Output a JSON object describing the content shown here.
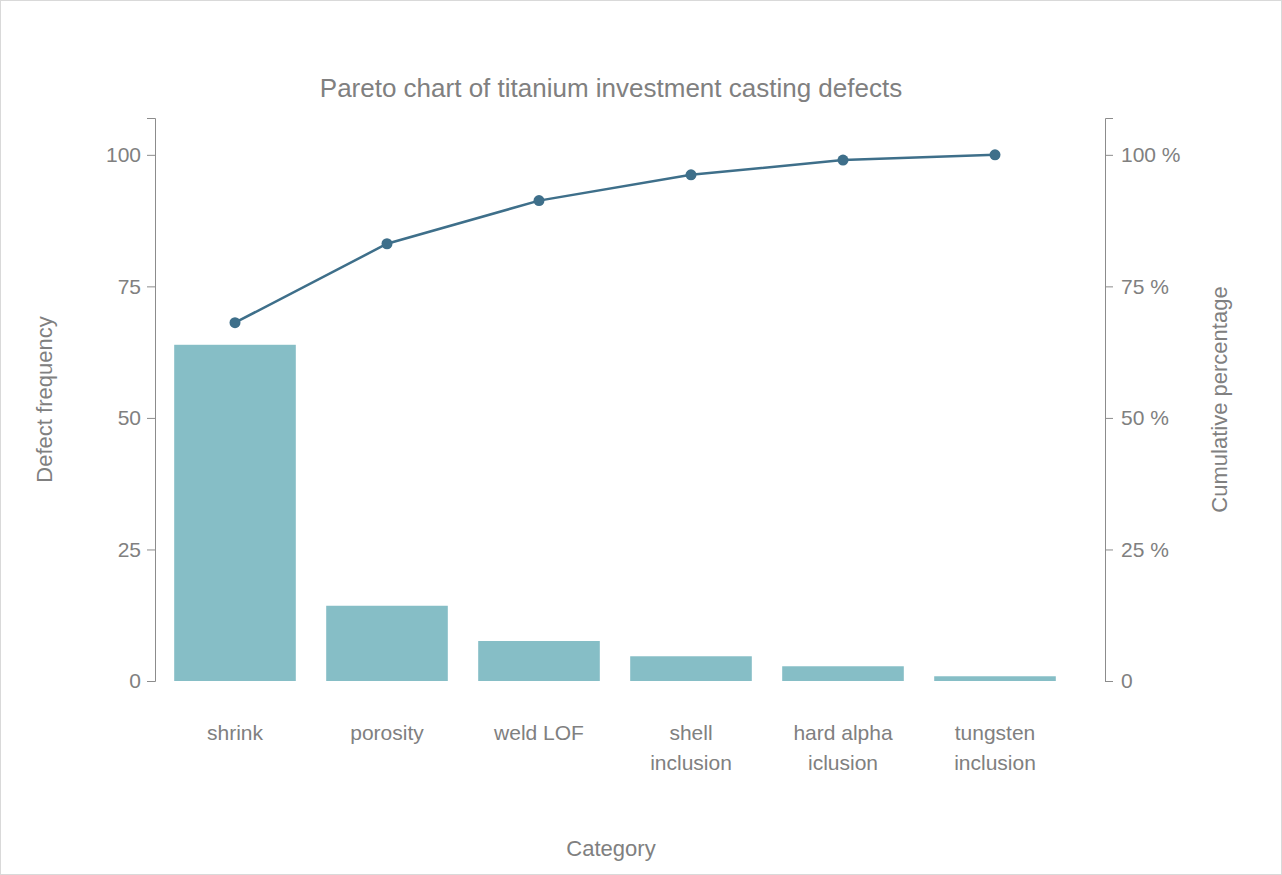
{
  "chart_data": {
    "type": "bar",
    "title": "Pareto chart of titanium investment casting defects",
    "x_label": "Category",
    "y_label": "Defect frequency",
    "y2_label": "Cumulative percentage",
    "categories": [
      "shrink",
      "porosity",
      "weld LOF",
      "shell inclusion",
      "hard alpha iclusion",
      "tungsten inclusion"
    ],
    "series": [
      {
        "type": "bar",
        "color": "#86bec6",
        "values": [
          63.9,
          14.3,
          7.6,
          4.7,
          2.8,
          0.9
        ]
      },
      {
        "type": "line",
        "axis": "y2",
        "color": "#3e6f8a",
        "marker": "circle",
        "values": [
          68.1,
          83.1,
          91.3,
          96.2,
          99.0,
          100
        ]
      }
    ],
    "ylim": [
      0,
      107
    ],
    "yticks": [
      0,
      25,
      50,
      75,
      100
    ],
    "y2lim": [
      0,
      107
    ],
    "y2ticks": [
      0,
      {
        "value": 25,
        "label": "25 %"
      },
      {
        "value": 50,
        "label": "50 %"
      },
      {
        "value": 75,
        "label": "75 %"
      },
      {
        "value": 100,
        "label": "100 %"
      }
    ],
    "grid": false
  }
}
